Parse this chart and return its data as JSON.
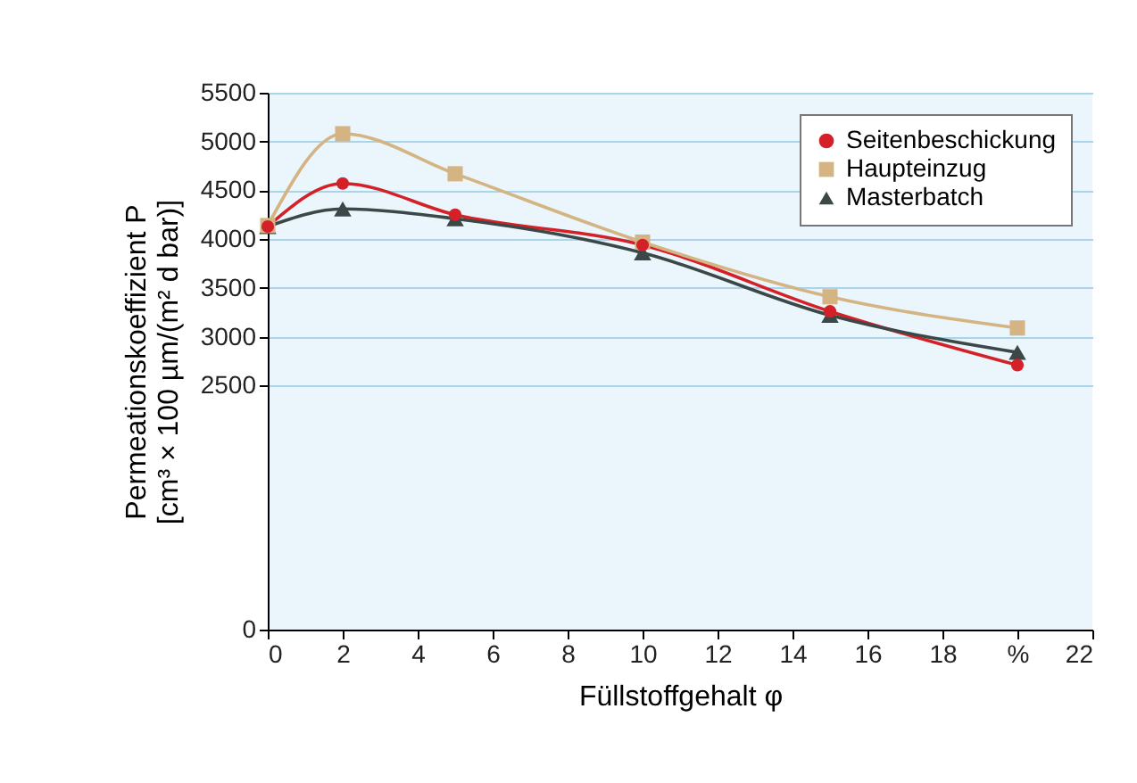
{
  "chart_data": {
    "type": "line",
    "xlabel": "Füllstoffgehalt φ",
    "ylabel": "Permeationskoeffizient P\n[cm³ × 100 µm/(m² d bar)]",
    "x": [
      0,
      2,
      5,
      10,
      15,
      20
    ],
    "series": [
      {
        "name": "Seitenbeschickung",
        "color": "#d42027",
        "marker": "circle",
        "values": [
          4130,
          4570,
          4250,
          3940,
          3260,
          2710
        ]
      },
      {
        "name": "Haupteinzug",
        "color": "#d4b483",
        "marker": "square",
        "values": [
          4140,
          5080,
          4670,
          3970,
          3410,
          3090
        ]
      },
      {
        "name": "Masterbatch",
        "color": "#3a4848",
        "marker": "triangle",
        "values": [
          4130,
          4310,
          4210,
          3860,
          3220,
          2840
        ]
      }
    ],
    "xlim": [
      0,
      22
    ],
    "xticks": [
      0,
      2,
      4,
      6,
      8,
      10,
      12,
      14,
      16,
      18,
      {
        "value": 20,
        "label": "%"
      },
      22
    ],
    "ylim": [
      0,
      5500
    ],
    "yticks": [
      0,
      2500,
      3000,
      3500,
      4000,
      4500,
      5000,
      5500
    ],
    "grid": "y",
    "legend": "top right"
  }
}
